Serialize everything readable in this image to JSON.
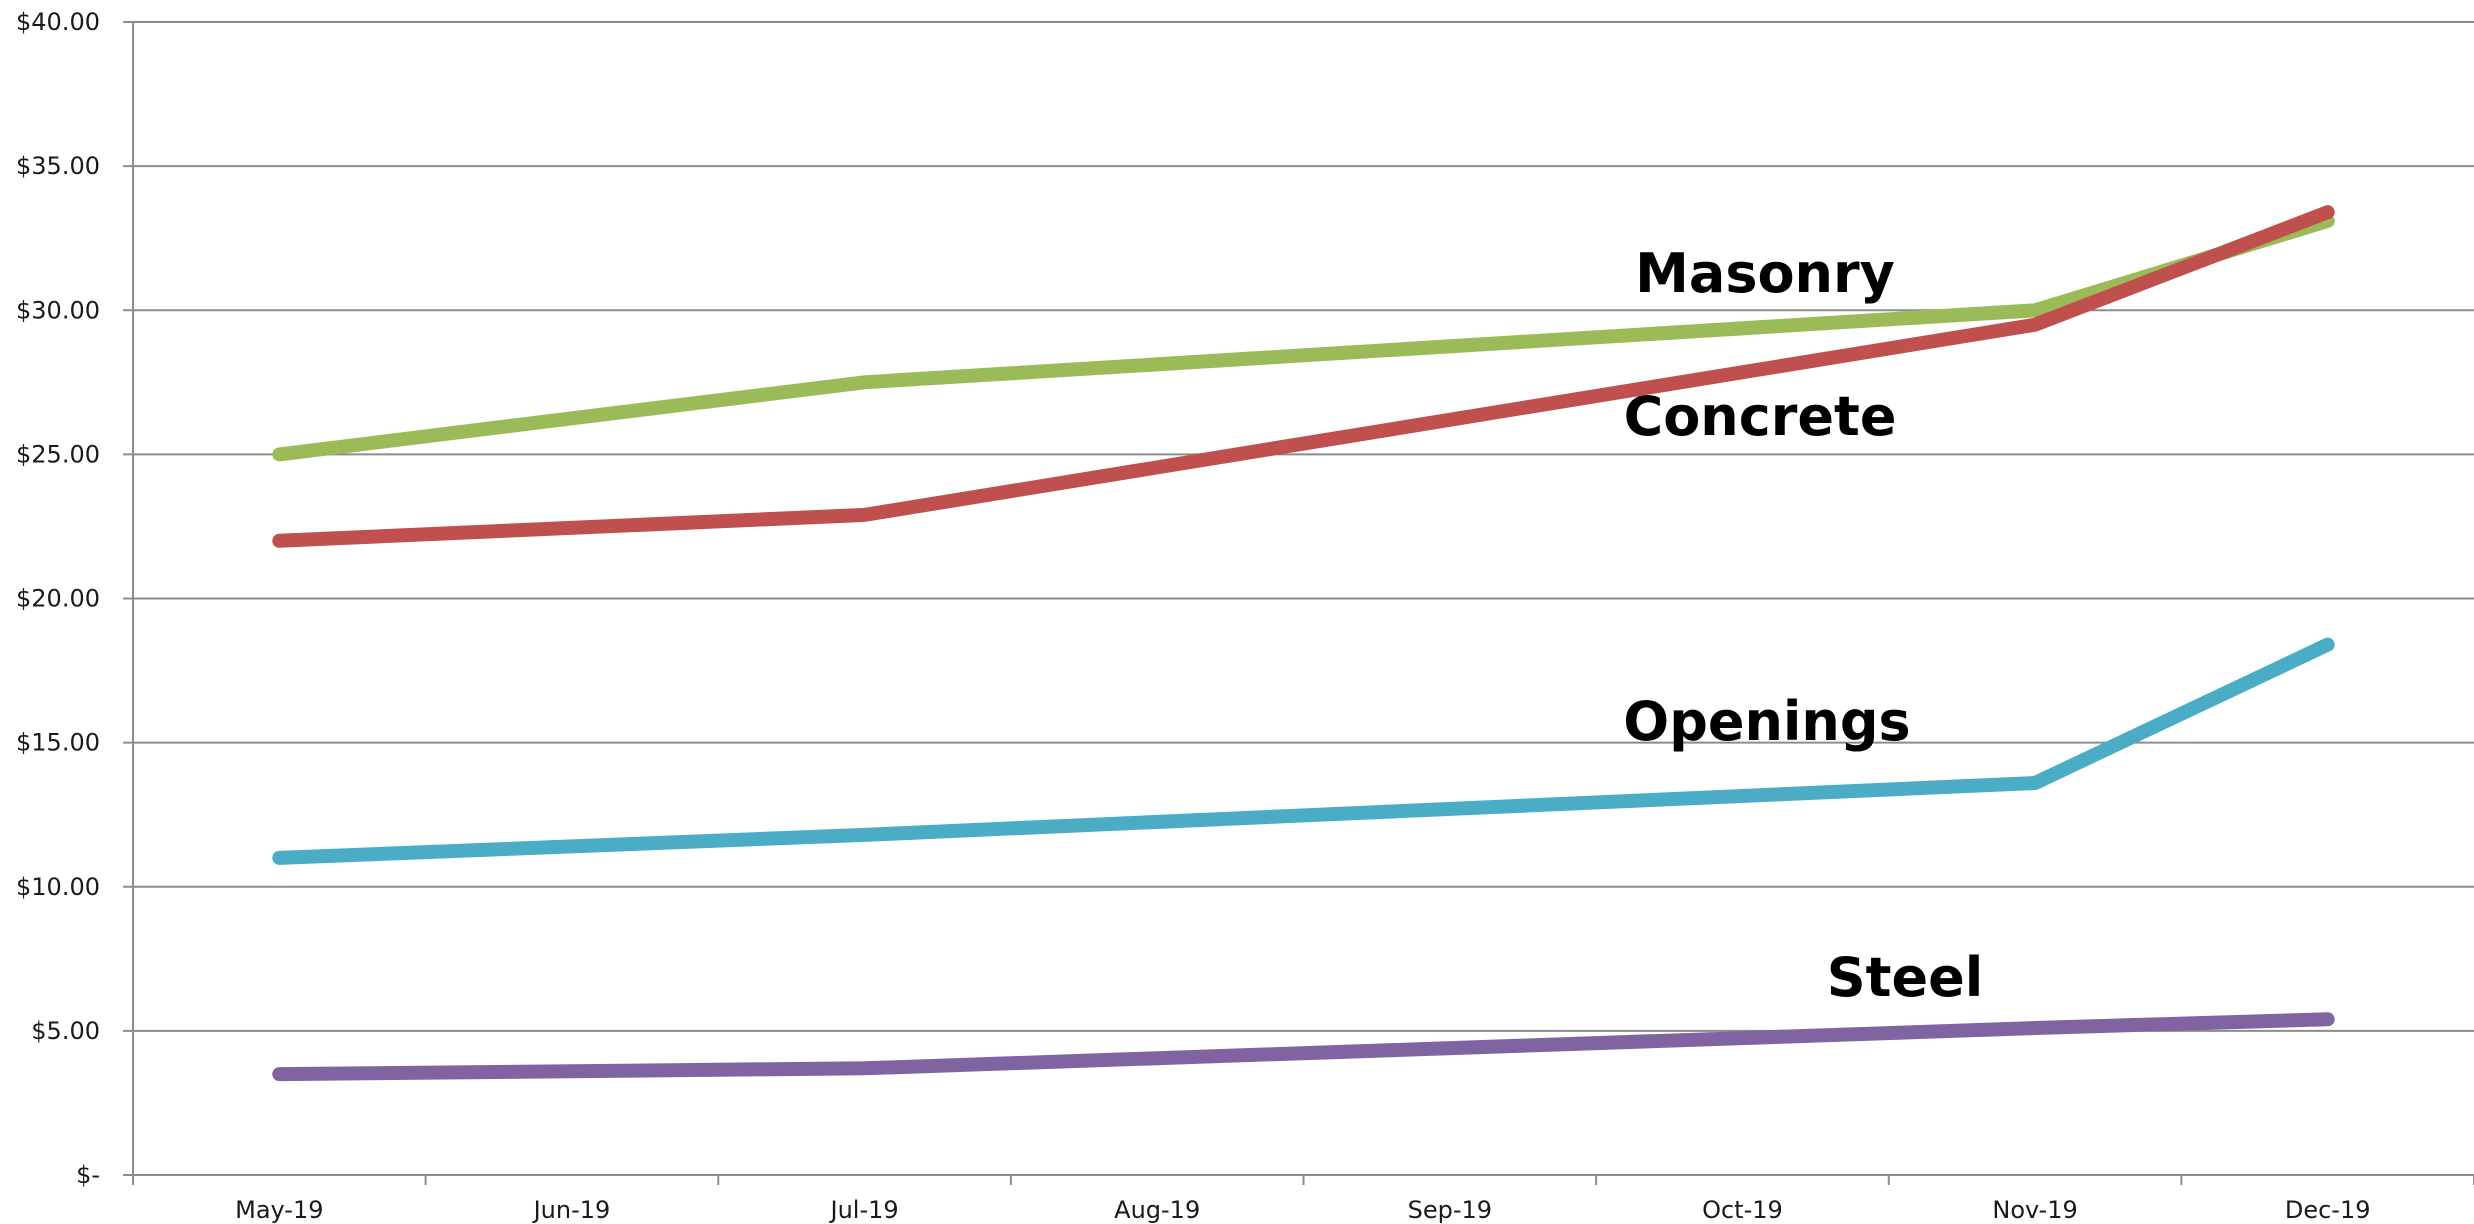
{
  "chart_data": {
    "type": "line",
    "categories": [
      "May-19",
      "Jun-19",
      "Jul-19",
      "Aug-19",
      "Sep-19",
      "Oct-19",
      "Nov-19",
      "Dec-19"
    ],
    "y_tick_labels": [
      "$-",
      "$5.00",
      "$10.00",
      "$15.00",
      "$20.00",
      "$25.00",
      "$30.00",
      "$35.00",
      "$40.00"
    ],
    "y_ticks": [
      0,
      5,
      10,
      15,
      20,
      25,
      30,
      35,
      40
    ],
    "ylim": [
      0,
      40
    ],
    "grid": true,
    "legend": "none (series labeled inline)",
    "series": [
      {
        "name": "Masonry",
        "color": "#9bbb59",
        "points": [
          {
            "x": "May-19",
            "y": 25.0
          },
          {
            "x": "Jul-19",
            "y": 27.5
          },
          {
            "x": "Nov-19",
            "y": 30.0
          },
          {
            "x": "Dec-19",
            "y": 33.1
          }
        ]
      },
      {
        "name": "Concrete",
        "color": "#c0504d",
        "points": [
          {
            "x": "May-19",
            "y": 22.0
          },
          {
            "x": "Jul-19",
            "y": 22.9
          },
          {
            "x": "Nov-19",
            "y": 29.5
          },
          {
            "x": "Dec-19",
            "y": 33.4
          }
        ]
      },
      {
        "name": "Openings",
        "color": "#4bacc6",
        "points": [
          {
            "x": "May-19",
            "y": 11.0
          },
          {
            "x": "Jul-19",
            "y": 11.8
          },
          {
            "x": "Nov-19",
            "y": 13.6
          },
          {
            "x": "Dec-19",
            "y": 18.4
          }
        ]
      },
      {
        "name": "Steel",
        "color": "#8064a2",
        "points": [
          {
            "x": "May-19",
            "y": 3.5
          },
          {
            "x": "Jul-19",
            "y": 3.7
          },
          {
            "x": "Nov-19",
            "y": 5.1
          },
          {
            "x": "Dec-19",
            "y": 5.4
          }
        ]
      }
    ]
  }
}
